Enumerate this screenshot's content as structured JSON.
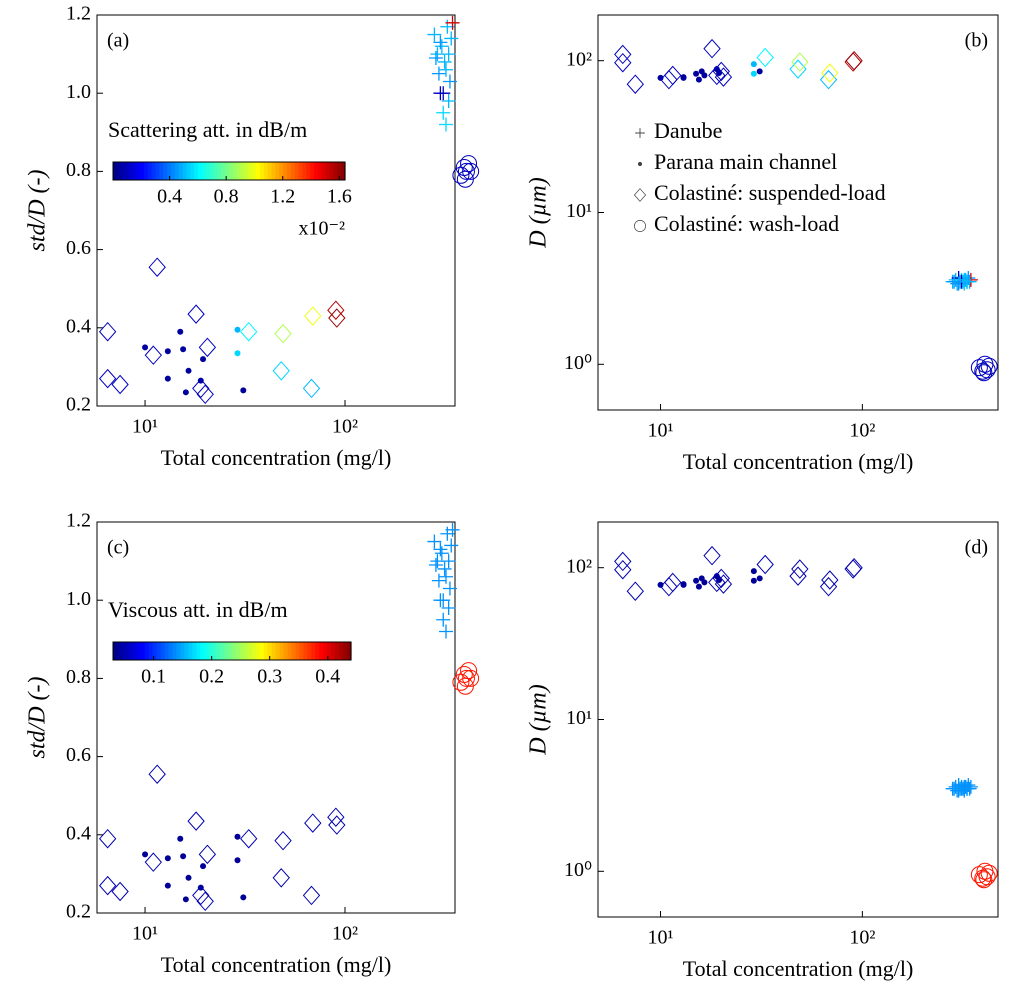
{
  "chart_data": [
    {
      "type": "scatter",
      "panel_label": "(a)",
      "xlabel": "Total concentration (mg/l)",
      "ylabel": "std/D (-)",
      "xscale": "log",
      "yscale": "linear",
      "xlim": [
        5.75,
        355
      ],
      "ylim": [
        0.2,
        1.2
      ],
      "xticks": [
        {
          "value": 10,
          "label": "10¹"
        },
        {
          "value": 100,
          "label": "10²"
        }
      ],
      "yticks": [
        0.2,
        0.4,
        0.6,
        0.8,
        {
          "value": 1,
          "label": "1.0"
        },
        1.2
      ],
      "colormap": "jet",
      "clim": [
        0,
        1.64
      ],
      "colorbar": {
        "title": "Scattering att. in dB/m",
        "ticks": [
          0.4,
          0.8,
          1.2,
          1.6
        ],
        "multiplier": "x10⁻²"
      },
      "series": [
        {
          "marker": "plus",
          "x": [
            280,
            290,
            295,
            300,
            305,
            310,
            315,
            320,
            325,
            330,
            335,
            340,
            345,
            300,
            310,
            320,
            330,
            285
          ],
          "values": [
            1.15,
            1.1,
            1.05,
            1.0,
            1.12,
            0.95,
            1.08,
            0.92,
            1.17,
            1.1,
            1.03,
            1.14,
            1.18,
            1.13,
            1.0,
            1.06,
            0.98,
            1.09
          ],
          "c": [
            0.5,
            0.5,
            0.45,
            0.1,
            0.5,
            0.55,
            0.5,
            0.55,
            0.5,
            0.5,
            0.45,
            0.5,
            1.5,
            0.45,
            0.1,
            0.5,
            0.5,
            0.45
          ]
        },
        {
          "marker": "dot",
          "x": [
            10,
            13,
            13,
            15,
            15.5,
            16.5,
            16,
            19,
            19.5,
            29,
            29,
            31
          ],
          "values": [
            0.35,
            0.34,
            0.27,
            0.39,
            0.345,
            0.29,
            0.235,
            0.265,
            0.32,
            0.395,
            0.335,
            0.24
          ],
          "c": [
            0.05,
            0.05,
            0.05,
            0.05,
            0.05,
            0.05,
            0.05,
            0.05,
            0.05,
            0.5,
            0.55,
            0.05
          ]
        },
        {
          "marker": "diamond",
          "x": [
            6.5,
            6.5,
            7.5,
            11.5,
            11,
            18,
            19,
            20,
            20.5,
            33,
            48,
            49,
            68,
            69,
            90,
            91
          ],
          "values": [
            0.39,
            0.27,
            0.255,
            0.555,
            0.33,
            0.435,
            0.245,
            0.23,
            0.35,
            0.39,
            0.29,
            0.385,
            0.245,
            0.43,
            0.445,
            0.425
          ],
          "c": [
            0.1,
            0.1,
            0.1,
            0.1,
            0.1,
            0.1,
            0.1,
            0.1,
            0.1,
            0.6,
            0.55,
            0.9,
            0.5,
            1.0,
            1.55,
            1.6
          ]
        },
        {
          "marker": "circle",
          "x": [
            380,
            395,
            405,
            415,
            425,
            400
          ],
          "values": [
            0.79,
            0.81,
            0.8,
            0.82,
            0.8,
            0.78
          ],
          "c": [
            0.1,
            0.1,
            0.1,
            0.1,
            0.1,
            0.1
          ]
        }
      ]
    },
    {
      "type": "scatter",
      "panel_label": "(b)",
      "xlabel": "Total concentration (mg/l)",
      "ylabel": "D (µm)",
      "xscale": "log",
      "yscale": "log",
      "xlim": [
        4.9,
        470
      ],
      "ylim": [
        0.5,
        200
      ],
      "xticks": [
        {
          "value": 10,
          "label": "10¹"
        },
        {
          "value": 100,
          "label": "10²"
        }
      ],
      "yticks": [
        {
          "value": 1,
          "label": "10⁰"
        },
        {
          "value": 10,
          "label": "10¹"
        },
        {
          "value": 100,
          "label": "10²"
        }
      ],
      "colormap": "jet",
      "clim": [
        0,
        1.64
      ],
      "legend": "left",
      "series": [
        {
          "name": "Danube",
          "marker": "plus",
          "x": [
            280,
            290,
            295,
            300,
            305,
            310,
            315,
            320,
            325,
            330,
            335,
            340,
            345,
            300,
            310,
            320,
            330,
            285
          ],
          "values": [
            3.5,
            3.6,
            3.4,
            3.7,
            3.5,
            3.6,
            3.5,
            3.4,
            3.6,
            3.5,
            3.7,
            3.5,
            3.6,
            3.4,
            3.5,
            3.6,
            3.5,
            3.5
          ],
          "c": [
            0.5,
            0.5,
            0.45,
            0.1,
            0.5,
            0.55,
            0.5,
            0.55,
            0.5,
            0.5,
            0.45,
            0.5,
            1.5,
            0.45,
            0.1,
            0.5,
            0.5,
            0.45
          ]
        },
        {
          "name": "Parana main channel",
          "marker": "dot",
          "x": [
            10,
            13,
            13,
            15,
            15.5,
            16.5,
            16,
            19,
            19.5,
            29,
            29,
            31
          ],
          "values": [
            77,
            77,
            78,
            82,
            75,
            80,
            85,
            88,
            83,
            95,
            82,
            85
          ],
          "c": [
            0.05,
            0.05,
            0.05,
            0.05,
            0.05,
            0.05,
            0.05,
            0.05,
            0.05,
            0.5,
            0.55,
            0.05
          ]
        },
        {
          "name": "Colastiné: suspended-load",
          "marker": "diamond",
          "x": [
            6.5,
            6.5,
            7.5,
            11.5,
            11,
            18,
            19,
            20,
            20.5,
            33,
            48,
            49,
            68,
            69,
            90,
            91
          ],
          "values": [
            110,
            97,
            70,
            80,
            75,
            120,
            80,
            85,
            78,
            105,
            88,
            98,
            75,
            83,
            98,
            100
          ],
          "c": [
            0.1,
            0.1,
            0.1,
            0.1,
            0.1,
            0.1,
            0.1,
            0.1,
            0.1,
            0.6,
            0.55,
            0.9,
            0.5,
            1.0,
            1.55,
            1.6
          ]
        },
        {
          "name": "Colastiné: wash-load",
          "marker": "circle",
          "x": [
            380,
            395,
            405,
            415,
            425,
            400
          ],
          "values": [
            0.95,
            0.9,
            1.0,
            0.92,
            0.97,
            0.88
          ],
          "c": [
            0.1,
            0.1,
            0.1,
            0.1,
            0.1,
            0.1
          ]
        }
      ]
    },
    {
      "type": "scatter",
      "panel_label": "(c)",
      "xlabel": "Total concentration (mg/l)",
      "ylabel": "std/D (-)",
      "xscale": "log",
      "yscale": "linear",
      "xlim": [
        5.75,
        355
      ],
      "ylim": [
        0.2,
        1.2
      ],
      "xticks": [
        {
          "value": 10,
          "label": "10¹"
        },
        {
          "value": 100,
          "label": "10²"
        }
      ],
      "yticks": [
        0.2,
        0.4,
        0.6,
        0.8,
        {
          "value": 1,
          "label": "1.0"
        },
        1.2
      ],
      "colormap": "jet",
      "clim": [
        0.03,
        0.44
      ],
      "colorbar": {
        "title": "Viscous att. in dB/m",
        "ticks": [
          0.1,
          0.2,
          0.3,
          0.4
        ]
      },
      "series": [
        {
          "marker": "plus",
          "x": [
            280,
            290,
            295,
            300,
            305,
            310,
            315,
            320,
            325,
            330,
            335,
            340,
            345,
            300,
            310,
            320,
            330,
            285
          ],
          "values": [
            1.15,
            1.1,
            1.05,
            1.0,
            1.12,
            0.95,
            1.08,
            0.92,
            1.17,
            1.1,
            1.03,
            1.14,
            1.18,
            1.13,
            1.0,
            1.06,
            0.98,
            1.09
          ],
          "c": [
            0.14,
            0.14,
            0.14,
            0.14,
            0.14,
            0.14,
            0.14,
            0.14,
            0.14,
            0.14,
            0.14,
            0.14,
            0.14,
            0.14,
            0.14,
            0.14,
            0.14,
            0.14
          ]
        },
        {
          "marker": "dot",
          "x": [
            10,
            13,
            13,
            15,
            15.5,
            16.5,
            16,
            19,
            19.5,
            29,
            29,
            31
          ],
          "values": [
            0.35,
            0.34,
            0.27,
            0.39,
            0.345,
            0.29,
            0.235,
            0.265,
            0.32,
            0.395,
            0.335,
            0.24
          ],
          "c": [
            0.04,
            0.04,
            0.04,
            0.04,
            0.04,
            0.04,
            0.04,
            0.04,
            0.04,
            0.04,
            0.04,
            0.04
          ]
        },
        {
          "marker": "diamond",
          "x": [
            6.5,
            6.5,
            7.5,
            11.5,
            11,
            18,
            19,
            20,
            20.5,
            33,
            48,
            49,
            68,
            69,
            90,
            91
          ],
          "values": [
            0.39,
            0.27,
            0.255,
            0.555,
            0.33,
            0.435,
            0.245,
            0.23,
            0.35,
            0.39,
            0.29,
            0.385,
            0.245,
            0.43,
            0.445,
            0.425
          ],
          "c": [
            0.05,
            0.05,
            0.05,
            0.05,
            0.05,
            0.05,
            0.05,
            0.05,
            0.05,
            0.05,
            0.05,
            0.05,
            0.05,
            0.05,
            0.05,
            0.05
          ]
        },
        {
          "marker": "circle",
          "x": [
            380,
            395,
            405,
            415,
            425,
            400
          ],
          "values": [
            0.79,
            0.81,
            0.8,
            0.82,
            0.8,
            0.78
          ],
          "c": [
            0.38,
            0.38,
            0.38,
            0.38,
            0.38,
            0.38
          ]
        }
      ]
    },
    {
      "type": "scatter",
      "panel_label": "(d)",
      "xlabel": "Total concentration (mg/l)",
      "ylabel": "D (µm)",
      "xscale": "log",
      "yscale": "log",
      "xlim": [
        4.9,
        470
      ],
      "ylim": [
        0.5,
        200
      ],
      "xticks": [
        {
          "value": 10,
          "label": "10¹"
        },
        {
          "value": 100,
          "label": "10²"
        }
      ],
      "yticks": [
        {
          "value": 1,
          "label": "10⁰"
        },
        {
          "value": 10,
          "label": "10¹"
        },
        {
          "value": 100,
          "label": "10²"
        }
      ],
      "colormap": "jet",
      "clim": [
        0.03,
        0.44
      ],
      "series": [
        {
          "marker": "plus",
          "x": [
            280,
            290,
            295,
            300,
            305,
            310,
            315,
            320,
            325,
            330,
            335,
            340,
            345,
            300,
            310,
            320,
            330,
            285
          ],
          "values": [
            3.5,
            3.6,
            3.4,
            3.7,
            3.5,
            3.6,
            3.5,
            3.4,
            3.6,
            3.5,
            3.7,
            3.5,
            3.6,
            3.4,
            3.5,
            3.6,
            3.5,
            3.5
          ],
          "c": [
            0.14,
            0.14,
            0.14,
            0.14,
            0.14,
            0.14,
            0.14,
            0.14,
            0.14,
            0.14,
            0.14,
            0.14,
            0.14,
            0.14,
            0.14,
            0.14,
            0.14,
            0.14
          ]
        },
        {
          "marker": "dot",
          "x": [
            10,
            13,
            13,
            15,
            15.5,
            16.5,
            16,
            19,
            19.5,
            29,
            29,
            31
          ],
          "values": [
            77,
            77,
            78,
            82,
            75,
            80,
            85,
            88,
            83,
            95,
            82,
            85
          ],
          "c": [
            0.04,
            0.04,
            0.04,
            0.04,
            0.04,
            0.04,
            0.04,
            0.04,
            0.04,
            0.04,
            0.04,
            0.04
          ]
        },
        {
          "marker": "diamond",
          "x": [
            6.5,
            6.5,
            7.5,
            11.5,
            11,
            18,
            19,
            20,
            20.5,
            33,
            48,
            49,
            68,
            69,
            90,
            91
          ],
          "values": [
            110,
            97,
            70,
            80,
            75,
            120,
            80,
            85,
            78,
            105,
            88,
            98,
            75,
            83,
            98,
            100
          ],
          "c": [
            0.05,
            0.05,
            0.05,
            0.05,
            0.05,
            0.05,
            0.05,
            0.05,
            0.05,
            0.05,
            0.05,
            0.05,
            0.05,
            0.05,
            0.05,
            0.05
          ]
        },
        {
          "marker": "circle",
          "x": [
            380,
            395,
            405,
            415,
            425,
            400
          ],
          "values": [
            0.95,
            0.9,
            1.0,
            0.92,
            0.97,
            0.88
          ],
          "c": [
            0.38,
            0.38,
            0.38,
            0.38,
            0.38,
            0.38
          ]
        }
      ]
    }
  ]
}
